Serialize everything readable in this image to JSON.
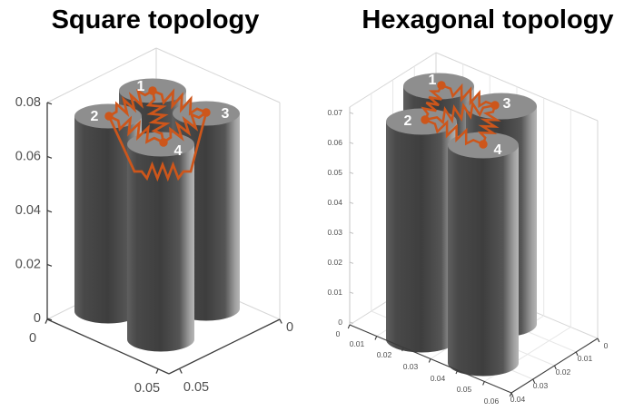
{
  "chart_data": [
    {
      "type": "3d-cylinder-plot",
      "title": "Square topology",
      "topology": "square",
      "description": "Four vertical cylinders (cells) packed in a 2x2 square arrangement, cell centers joined by an orange resistor network",
      "cylinder_count": 4,
      "nodes": [
        "1",
        "2",
        "3",
        "4"
      ],
      "edges": [
        [
          "1",
          "2"
        ],
        [
          "1",
          "3"
        ],
        [
          "1",
          "4"
        ],
        [
          "2",
          "4"
        ],
        [
          "3",
          "4"
        ],
        [
          "2",
          "3"
        ]
      ],
      "z_ticks": [
        "0",
        "0.02",
        "0.04",
        "0.06",
        "0.08"
      ],
      "x_ticks": [
        "0",
        "0.05"
      ],
      "y_ticks": [
        "0.05",
        "0"
      ],
      "zlim": [
        0,
        0.08
      ],
      "grid": false,
      "legend": "none"
    },
    {
      "type": "3d-cylinder-plot",
      "title": "Hexagonal topology",
      "topology": "hexagonal",
      "description": "Four vertical cylinders (cells) in a hexagonal close-packed arrangement, adjacent cell centers joined by an orange resistor network",
      "cylinder_count": 4,
      "nodes": [
        "1",
        "2",
        "3",
        "4"
      ],
      "edges": [
        [
          "1",
          "2"
        ],
        [
          "1",
          "3"
        ],
        [
          "2",
          "3"
        ],
        [
          "2",
          "4"
        ],
        [
          "3",
          "4"
        ]
      ],
      "z_ticks": [
        "0",
        "0.01",
        "0.02",
        "0.03",
        "0.04",
        "0.05",
        "0.06",
        "0.07"
      ],
      "x_ticks": [
        "0",
        "0.01",
        "0.02",
        "0.03",
        "0.04",
        "0.05",
        "0.06"
      ],
      "y_ticks": [
        "0.04",
        "0.03",
        "0.02",
        "0.01",
        "0"
      ],
      "zlim": [
        0,
        0.07
      ],
      "grid": true,
      "legend": "none"
    }
  ],
  "colors": {
    "background": "#ffffff",
    "title": "#000000",
    "network_orange": "#cd561b",
    "node_label": "#ffffff",
    "cylinder_top": "#8e8e8e",
    "cylinder_body_dark": "#3e3e3e",
    "cylinder_body_light": "#b6b6b6",
    "axis_dark": "#3c3c3c",
    "axis_light": "#c4c4c4",
    "box_edge": "#d6d6d6",
    "grid_line": "#e7e7e7",
    "tick_label": "#4f4f4f"
  }
}
